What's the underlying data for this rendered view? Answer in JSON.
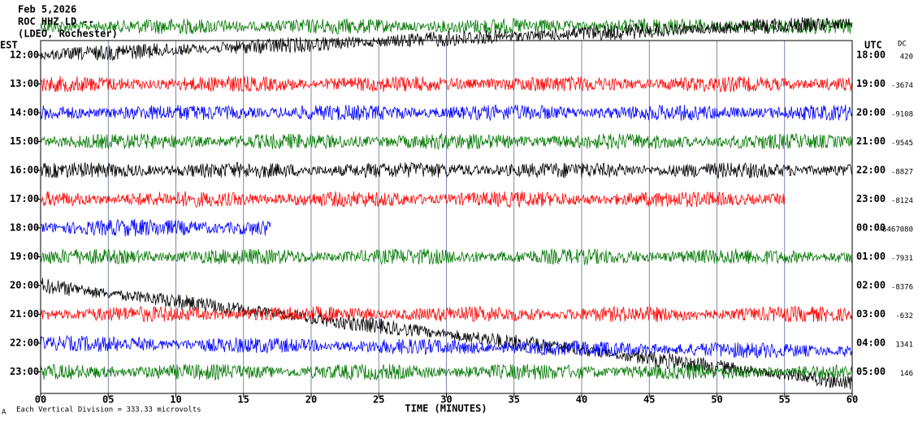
{
  "header": {
    "date": "Feb 5,2026",
    "station": "ROC HHZ LD --",
    "network": "(LDEO, Rochester)"
  },
  "left_axis": {
    "label": "EST",
    "rows": [
      "12:00",
      "13:00",
      "14:00",
      "15:00",
      "16:00",
      "17:00",
      "18:00",
      "19:00",
      "20:00",
      "21:00",
      "22:00",
      "23:00"
    ]
  },
  "right_axis": {
    "label": "UTC",
    "rows": [
      "18:00",
      "19:00",
      "20:00",
      "21:00",
      "22:00",
      "23:00",
      "00:00",
      "01:00",
      "02:00",
      "03:00",
      "04:00",
      "05:00"
    ]
  },
  "dc": {
    "label": "DC",
    "values": [
      "420",
      "-3674",
      "-9108",
      "-9545",
      "-8827",
      "-8124",
      "-6467080",
      "-7931",
      "-8376",
      "-632",
      "1341",
      "146"
    ]
  },
  "x_axis": {
    "label": "TIME (MINUTES)",
    "ticks": [
      "00",
      "05",
      "10",
      "15",
      "20",
      "25",
      "30",
      "35",
      "40",
      "45",
      "50",
      "55",
      "60"
    ]
  },
  "footer": {
    "corner": "A",
    "scale": "Each Vertical Division = 333.33 microvolts"
  }
}
